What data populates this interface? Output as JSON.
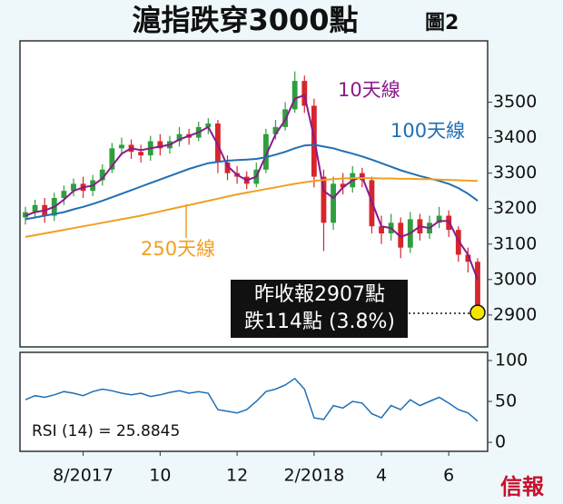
{
  "chart_data": {
    "type": "candlestick",
    "title": "滬指跌穿3000點",
    "subtitle": "圖2",
    "source": "信報",
    "categories": [
      null,
      null,
      null,
      null,
      null,
      null,
      "8/2017",
      null,
      null,
      null,
      null,
      null,
      null,
      null,
      "10",
      null,
      null,
      null,
      null,
      null,
      null,
      null,
      "12",
      null,
      null,
      null,
      null,
      null,
      null,
      null,
      "2/2018",
      null,
      null,
      null,
      null,
      null,
      null,
      "4",
      null,
      null,
      null,
      null,
      null,
      null,
      "6",
      null,
      null,
      null
    ],
    "open": [
      3175,
      3190,
      3210,
      3180,
      3230,
      3250,
      3270,
      3250,
      3280,
      3310,
      3370,
      3380,
      3360,
      3350,
      3390,
      3370,
      3390,
      3410,
      3400,
      3430,
      3440,
      3330,
      3300,
      3290,
      3270,
      3310,
      3410,
      3430,
      3480,
      3560,
      3490,
      3290,
      3160,
      3270,
      3260,
      3300,
      3280,
      3150,
      3130,
      3160,
      3090,
      3170,
      3130,
      3160,
      3180,
      3140,
      3070,
      3050
    ],
    "high": [
      3205,
      3225,
      3230,
      3245,
      3265,
      3285,
      3290,
      3295,
      3325,
      3385,
      3400,
      3395,
      3380,
      3405,
      3410,
      3405,
      3430,
      3425,
      3445,
      3455,
      3450,
      3350,
      3320,
      3305,
      3330,
      3425,
      3450,
      3500,
      3587,
      3575,
      3510,
      3310,
      3290,
      3300,
      3320,
      3315,
      3290,
      3180,
      3185,
      3175,
      3190,
      3185,
      3180,
      3205,
      3195,
      3150,
      3090,
      3060
    ],
    "low": [
      3155,
      3175,
      3160,
      3165,
      3210,
      3235,
      3230,
      3235,
      3265,
      3300,
      3350,
      3340,
      3330,
      3335,
      3350,
      3355,
      3375,
      3380,
      3390,
      3410,
      3300,
      3280,
      3270,
      3255,
      3260,
      3300,
      3395,
      3420,
      3470,
      3470,
      3260,
      3080,
      3140,
      3240,
      3245,
      3260,
      3130,
      3100,
      3110,
      3060,
      3075,
      3110,
      3115,
      3145,
      3120,
      3050,
      3020,
      2900
    ],
    "close": [
      3190,
      3210,
      3180,
      3230,
      3250,
      3270,
      3250,
      3280,
      3310,
      3370,
      3380,
      3360,
      3350,
      3390,
      3370,
      3390,
      3410,
      3400,
      3430,
      3440,
      3330,
      3300,
      3290,
      3270,
      3310,
      3410,
      3430,
      3480,
      3560,
      3490,
      3290,
      3160,
      3270,
      3260,
      3300,
      3280,
      3150,
      3130,
      3160,
      3090,
      3170,
      3130,
      3160,
      3180,
      3140,
      3070,
      3050,
      2907
    ],
    "up_color": "#2e9e3e",
    "down_color": "#d6262c",
    "series": [
      {
        "name": "10天線",
        "color": "#8b1a8b",
        "values": [
          3180,
          3190,
          3195,
          3205,
          3225,
          3250,
          3260,
          3265,
          3285,
          3320,
          3355,
          3370,
          3365,
          3370,
          3375,
          3380,
          3395,
          3405,
          3415,
          3430,
          3380,
          3320,
          3295,
          3280,
          3290,
          3350,
          3410,
          3450,
          3510,
          3520,
          3400,
          3250,
          3230,
          3260,
          3280,
          3290,
          3220,
          3150,
          3145,
          3120,
          3130,
          3150,
          3145,
          3165,
          3165,
          3110,
          3070,
          3000
        ]
      },
      {
        "name": "100天線",
        "color": "#1f6fb5",
        "values": [
          3170,
          3175,
          3180,
          3185,
          3190,
          3198,
          3205,
          3213,
          3222,
          3232,
          3242,
          3252,
          3262,
          3272,
          3282,
          3292,
          3302,
          3312,
          3320,
          3328,
          3332,
          3335,
          3337,
          3338,
          3340,
          3345,
          3352,
          3360,
          3370,
          3378,
          3380,
          3375,
          3370,
          3362,
          3355,
          3347,
          3338,
          3328,
          3318,
          3308,
          3300,
          3292,
          3285,
          3278,
          3270,
          3258,
          3242,
          3222
        ]
      },
      {
        "name": "250天線",
        "color": "#f0a020",
        "values": [
          3120,
          3125,
          3130,
          3135,
          3140,
          3145,
          3150,
          3155,
          3160,
          3165,
          3170,
          3175,
          3180,
          3186,
          3192,
          3198,
          3204,
          3210,
          3216,
          3222,
          3228,
          3234,
          3240,
          3245,
          3250,
          3255,
          3260,
          3265,
          3270,
          3274,
          3278,
          3281,
          3283,
          3285,
          3286,
          3286,
          3286,
          3285,
          3285,
          3284,
          3284,
          3283,
          3283,
          3282,
          3281,
          3280,
          3279,
          3278
        ]
      }
    ],
    "ylim": [
      2810,
      3673
    ],
    "yticks": [
      2900,
      3000,
      3100,
      3200,
      3300,
      3400,
      3500
    ],
    "annotations": [
      "昨收報2907點",
      "跌114點 (3.8%)"
    ],
    "marker_color": "#f5e600",
    "rsi": {
      "label": "RSI (14) = 25.8845",
      "color": "#1f6fb5",
      "values": [
        52,
        57,
        55,
        58,
        62,
        60,
        57,
        62,
        65,
        63,
        60,
        58,
        60,
        56,
        58,
        61,
        63,
        60,
        62,
        60,
        40,
        38,
        36,
        40,
        50,
        62,
        65,
        70,
        78,
        65,
        30,
        28,
        45,
        42,
        50,
        48,
        35,
        30,
        45,
        40,
        52,
        45,
        50,
        55,
        48,
        40,
        36,
        25.8845
      ],
      "ylim": [
        -11,
        110
      ],
      "yticks": [
        0,
        50,
        100
      ]
    }
  }
}
